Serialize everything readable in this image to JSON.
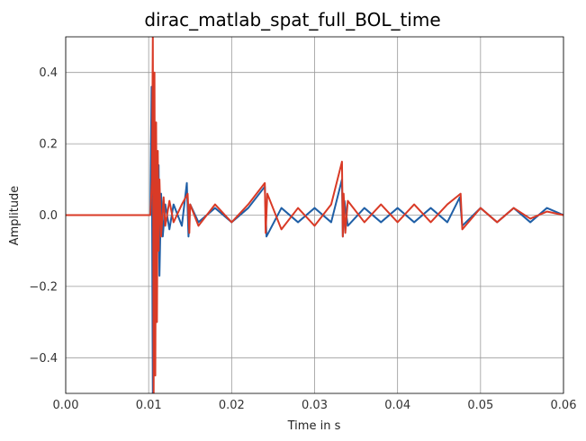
{
  "chart_data": {
    "type": "line",
    "title": "dirac_matlab_spat_full_BOL_time",
    "xlabel": "Time in s",
    "ylabel": "Amplitude",
    "xlim": [
      0.0,
      0.06
    ],
    "ylim": [
      -0.5,
      0.5
    ],
    "grid": true,
    "x_ticks": [
      0.0,
      0.01,
      0.02,
      0.03,
      0.04,
      0.05,
      0.06
    ],
    "x_tick_labels": [
      "0.00",
      "0.01",
      "0.02",
      "0.03",
      "0.04",
      "0.05",
      "0.06"
    ],
    "y_ticks": [
      -0.4,
      -0.2,
      0.0,
      0.2,
      0.4
    ],
    "y_tick_labels": [
      "−0.4",
      "−0.2",
      "0.0",
      "0.2",
      "0.4"
    ],
    "series": [
      {
        "color": "#1f5fa6",
        "x": [
          0.0,
          0.0102,
          0.01035,
          0.0105,
          0.0106,
          0.0107,
          0.0108,
          0.0109,
          0.011,
          0.0111,
          0.0112,
          0.0113,
          0.0115,
          0.0117,
          0.012,
          0.0125,
          0.013,
          0.014,
          0.0146,
          0.0148,
          0.015,
          0.016,
          0.018,
          0.02,
          0.022,
          0.024,
          0.0242,
          0.026,
          0.028,
          0.03,
          0.032,
          0.0333,
          0.0334,
          0.0336,
          0.034,
          0.036,
          0.038,
          0.04,
          0.042,
          0.044,
          0.046,
          0.0475,
          0.0478,
          0.05,
          0.052,
          0.054,
          0.056,
          0.058,
          0.06
        ],
        "y": [
          0.0,
          0.0,
          0.36,
          -0.5,
          0.3,
          -0.3,
          0.1,
          -0.2,
          0.15,
          -0.1,
          0.14,
          -0.17,
          0.06,
          -0.06,
          0.03,
          -0.04,
          0.03,
          -0.03,
          0.09,
          -0.06,
          0.03,
          -0.02,
          0.02,
          -0.02,
          0.02,
          0.08,
          -0.06,
          0.02,
          -0.02,
          0.02,
          -0.02,
          0.1,
          -0.06,
          0.04,
          -0.03,
          0.02,
          -0.02,
          0.02,
          -0.02,
          0.02,
          -0.02,
          0.05,
          -0.03,
          0.02,
          -0.02,
          0.02,
          -0.02,
          0.02,
          0.0
        ]
      },
      {
        "color": "#d93a26",
        "x": [
          0.0,
          0.0102,
          0.0104,
          0.0105,
          0.0106,
          0.0107,
          0.0108,
          0.0109,
          0.011,
          0.0111,
          0.0112,
          0.0113,
          0.0115,
          0.0118,
          0.012,
          0.0125,
          0.013,
          0.014,
          0.0147,
          0.0149,
          0.015,
          0.016,
          0.018,
          0.02,
          0.022,
          0.024,
          0.0241,
          0.0243,
          0.026,
          0.028,
          0.03,
          0.032,
          0.0333,
          0.0334,
          0.0335,
          0.0337,
          0.034,
          0.036,
          0.038,
          0.04,
          0.042,
          0.044,
          0.046,
          0.0476,
          0.0478,
          0.05,
          0.052,
          0.054,
          0.056,
          0.058,
          0.06
        ],
        "y": [
          0.0,
          0.0,
          0.1,
          0.5,
          -0.5,
          0.4,
          -0.45,
          0.26,
          -0.3,
          0.18,
          -0.1,
          0.1,
          -0.06,
          0.05,
          -0.03,
          0.04,
          -0.02,
          0.03,
          0.06,
          -0.05,
          0.03,
          -0.03,
          0.03,
          -0.02,
          0.03,
          0.09,
          -0.05,
          0.06,
          -0.04,
          0.02,
          -0.03,
          0.03,
          0.15,
          -0.06,
          0.06,
          -0.05,
          0.04,
          -0.02,
          0.03,
          -0.02,
          0.03,
          -0.02,
          0.03,
          0.06,
          -0.04,
          0.02,
          -0.02,
          0.02,
          -0.01,
          0.01,
          0.0
        ]
      }
    ]
  }
}
